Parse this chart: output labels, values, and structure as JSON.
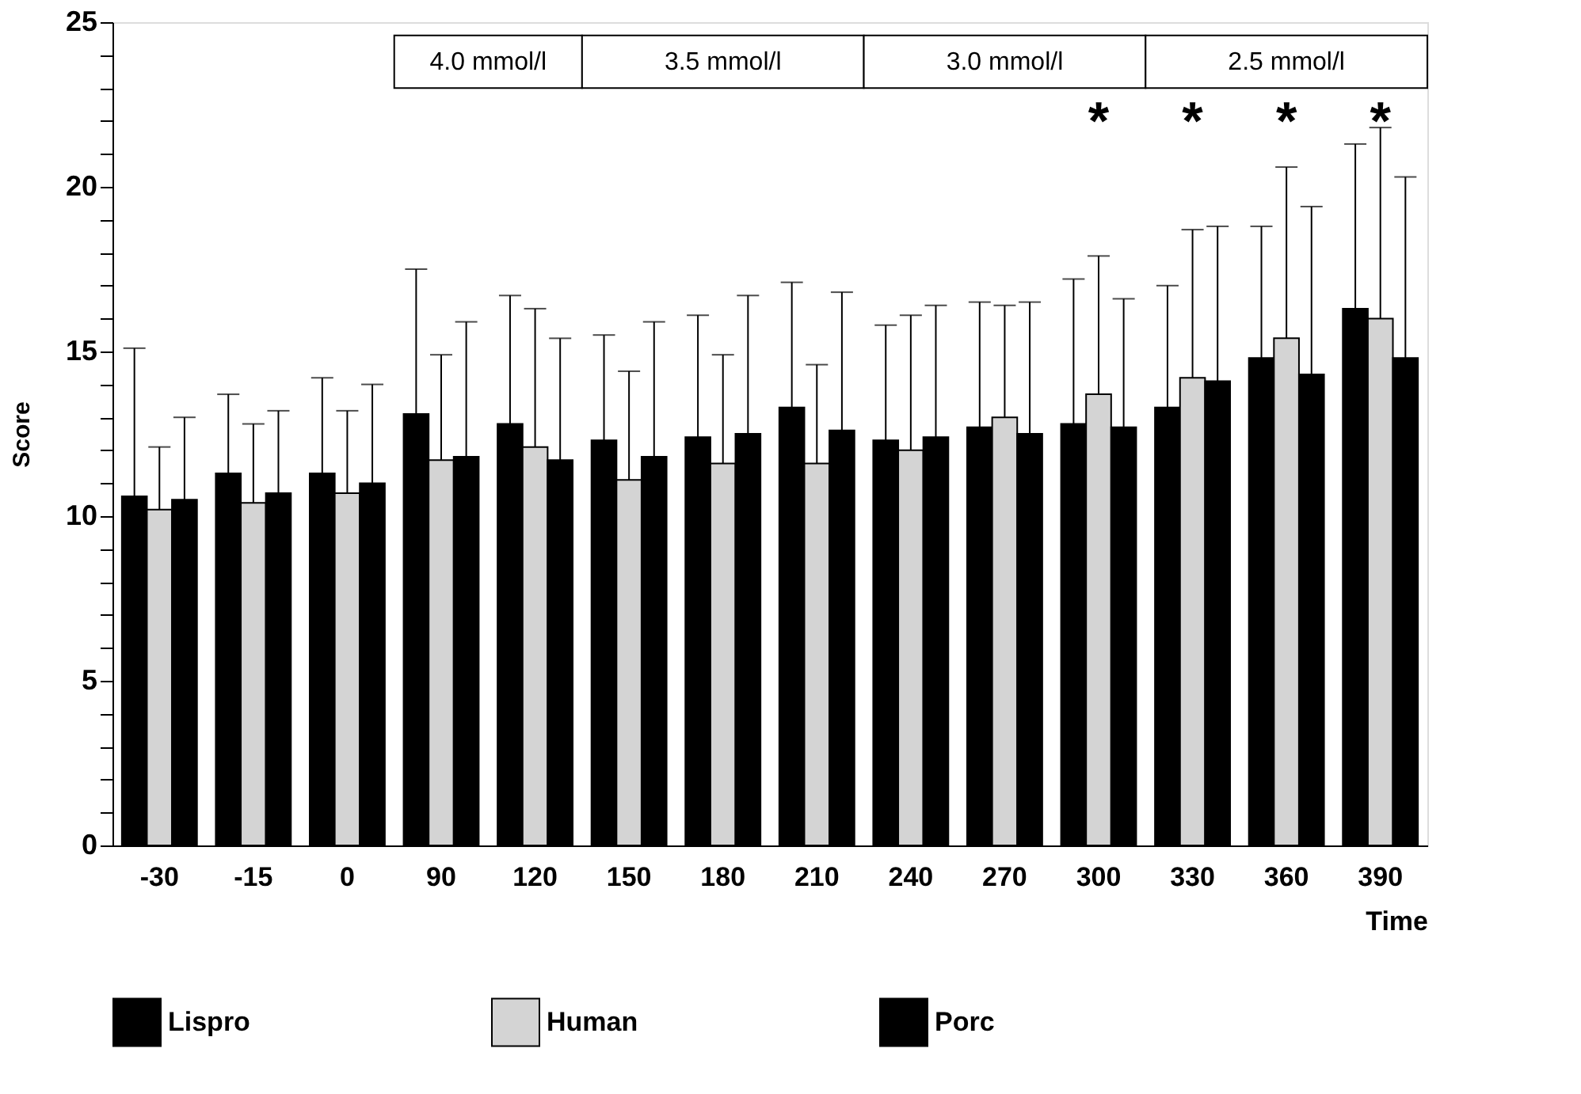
{
  "chart_data": {
    "type": "bar",
    "xlabel": "Time",
    "ylabel": "Score",
    "categories": [
      "-30",
      "-15",
      "0",
      "90",
      "120",
      "150",
      "180",
      "210",
      "240",
      "270",
      "300",
      "330",
      "360",
      "390"
    ],
    "series": [
      {
        "name": "Lispro",
        "color": "#000000",
        "values": [
          10.6,
          11.3,
          11.3,
          13.1,
          12.8,
          12.3,
          12.4,
          13.3,
          12.3,
          12.7,
          12.8,
          13.3,
          14.8,
          16.3
        ],
        "errors": [
          [
            10.6,
            15.1
          ],
          [
            11.3,
            13.7
          ],
          [
            11.3,
            14.2
          ],
          [
            13.1,
            17.5
          ],
          [
            12.8,
            16.7
          ],
          [
            12.3,
            15.5
          ],
          [
            12.4,
            16.1
          ],
          [
            13.3,
            17.1
          ],
          [
            12.3,
            15.8
          ],
          [
            12.7,
            16.5
          ],
          [
            12.8,
            17.2
          ],
          [
            13.3,
            17.0
          ],
          [
            14.8,
            18.8
          ],
          [
            16.3,
            21.3
          ]
        ]
      },
      {
        "name": "Human",
        "color": "#d4d4d4",
        "values": [
          10.2,
          10.4,
          10.7,
          11.7,
          12.1,
          11.1,
          11.6,
          11.6,
          12.0,
          13.0,
          13.7,
          14.2,
          15.4,
          16.0
        ],
        "errors": [
          [
            10.2,
            12.1
          ],
          [
            10.4,
            12.8
          ],
          [
            10.7,
            13.2
          ],
          [
            11.7,
            14.9
          ],
          [
            12.1,
            16.3
          ],
          [
            11.1,
            14.4
          ],
          [
            11.6,
            14.9
          ],
          [
            11.6,
            14.6
          ],
          [
            12.0,
            16.1
          ],
          [
            13.0,
            16.4
          ],
          [
            13.7,
            17.9
          ],
          [
            14.2,
            18.7
          ],
          [
            15.4,
            20.6
          ],
          [
            16.0,
            21.8
          ]
        ]
      },
      {
        "name": "Porc",
        "color": "#000000",
        "values": [
          10.5,
          10.7,
          11.0,
          11.8,
          11.7,
          11.8,
          12.5,
          12.6,
          12.4,
          12.5,
          12.7,
          14.1,
          14.3,
          14.8
        ],
        "errors": [
          [
            10.5,
            13.0
          ],
          [
            10.7,
            13.2
          ],
          [
            11.0,
            14.0
          ],
          [
            11.8,
            15.9
          ],
          [
            11.7,
            15.4
          ],
          [
            11.8,
            15.9
          ],
          [
            12.5,
            16.7
          ],
          [
            12.6,
            16.8
          ],
          [
            12.4,
            16.4
          ],
          [
            12.5,
            16.5
          ],
          [
            12.7,
            16.6
          ],
          [
            14.1,
            18.8
          ],
          [
            14.3,
            19.4
          ],
          [
            14.8,
            20.3
          ]
        ]
      }
    ],
    "ylim": [
      0,
      25
    ],
    "yticks": [
      0,
      {
        "value": 1,
        "label": null
      },
      {
        "value": 2,
        "label": null
      },
      {
        "value": 3,
        "label": null
      },
      {
        "value": 4,
        "label": null
      },
      5,
      {
        "value": 6,
        "label": null
      },
      {
        "value": 7,
        "label": null
      },
      {
        "value": 8,
        "label": null
      },
      {
        "value": 9,
        "label": null
      },
      10,
      {
        "value": 11,
        "label": null
      },
      {
        "value": 12,
        "label": null
      },
      {
        "value": 13,
        "label": null
      },
      {
        "value": 14,
        "label": null
      },
      15,
      {
        "value": 16,
        "label": null
      },
      {
        "value": 17,
        "label": null
      },
      {
        "value": 18,
        "label": null
      },
      {
        "value": 19,
        "label": null
      },
      20,
      {
        "value": 21,
        "label": null
      },
      {
        "value": 22,
        "label": null
      },
      {
        "value": 23,
        "label": null
      },
      {
        "value": 24,
        "label": null
      },
      25
    ],
    "bands": [
      {
        "axis": "x",
        "from": "90",
        "to": "120",
        "label": "4.0 mmol/l",
        "color": "#ffffff"
      },
      {
        "axis": "x",
        "from": "150",
        "to": "210",
        "label": "3.5 mmol/l",
        "color": "#ffffff"
      },
      {
        "axis": "x",
        "from": "240",
        "to": "300",
        "label": "3.0 mmol/l",
        "color": "#ffffff"
      },
      {
        "axis": "x",
        "from": "330",
        "to": "390",
        "label": "2.5 mmol/l",
        "color": "#ffffff"
      }
    ],
    "annotations": [
      "*",
      "*",
      "*",
      "*"
    ],
    "grid": false,
    "legend": "bottom"
  }
}
